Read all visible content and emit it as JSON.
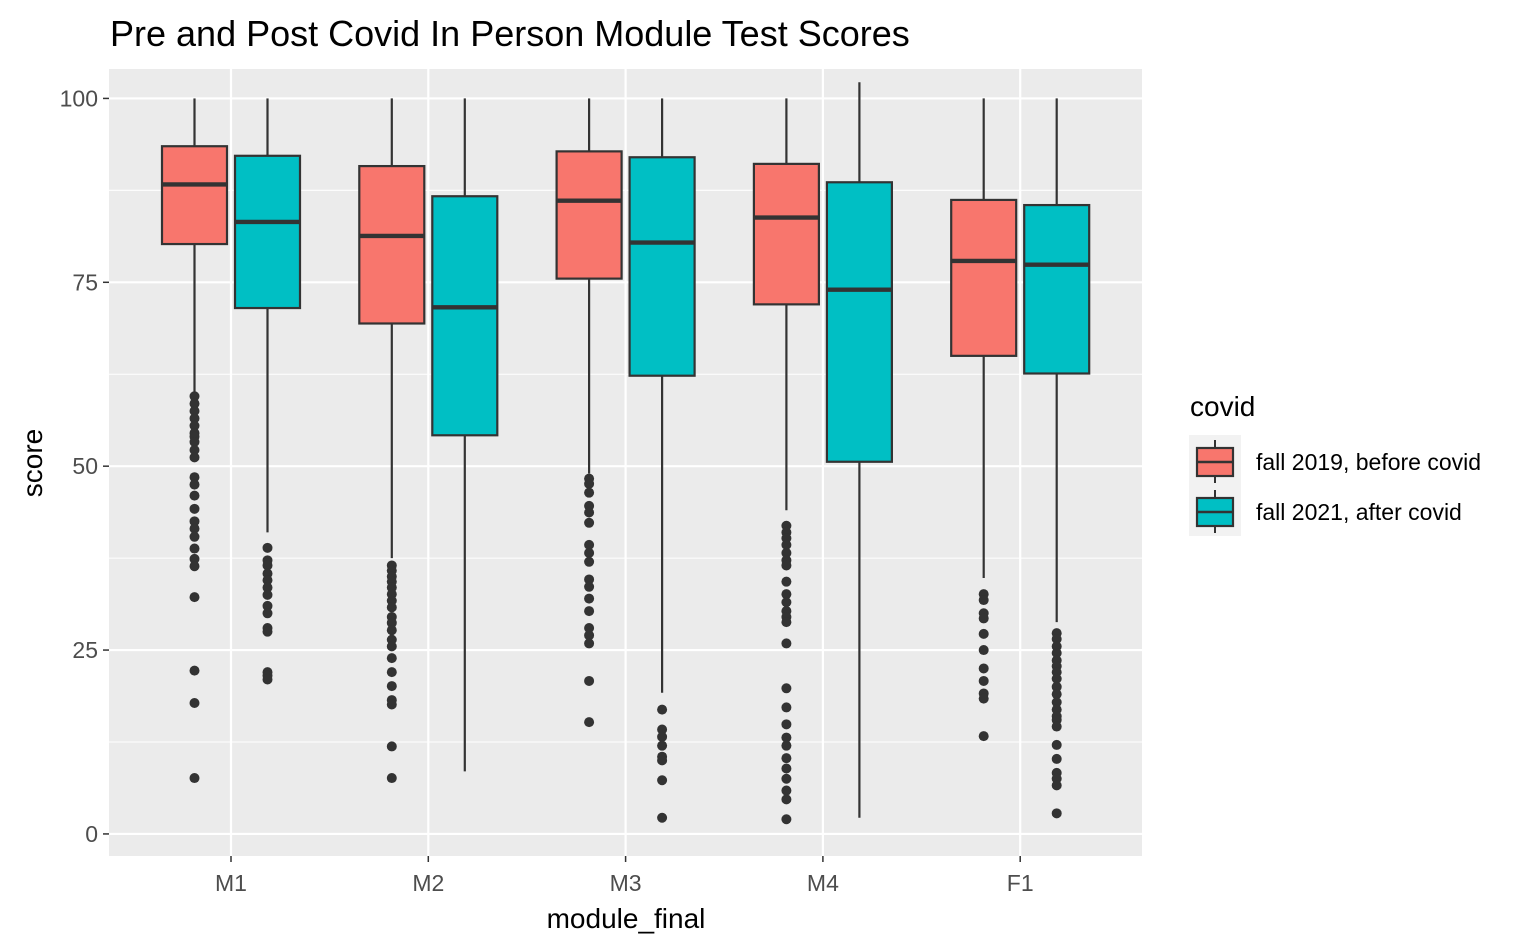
{
  "chart_data": {
    "type": "boxplot",
    "title": "Pre and Post Covid In Person Module Test Scores",
    "xlabel": "module_final",
    "ylabel": "score",
    "categories": [
      "M1",
      "M2",
      "M3",
      "M4",
      "F1"
    ],
    "ylim": [
      -3,
      104
    ],
    "yticks": [
      0,
      25,
      50,
      75,
      100
    ],
    "grid": true,
    "legend": {
      "title": "covid",
      "position": "right"
    },
    "series": [
      {
        "name": "fall 2019, before covid",
        "color": "#F8766D",
        "boxes": [
          {
            "category": "M1",
            "min": 60,
            "q1": 80.2,
            "median": 88.3,
            "q3": 93.5,
            "max": 100,
            "outliers": [
              59.5,
              58.5,
              57.5,
              56.5,
              55.5,
              54.5,
              54.0,
              53.3,
              52.2,
              51.2,
              48.5,
              47.5,
              46.0,
              44.2,
              42.5,
              41.5,
              40.4,
              38.8,
              37.4,
              36.4,
              32.2,
              22.2,
              17.8,
              7.6
            ]
          },
          {
            "category": "M2",
            "min": 37.5,
            "q1": 69.4,
            "median": 81.3,
            "q3": 90.8,
            "max": 100,
            "outliers": [
              36.5,
              35.8,
              35.0,
              34.3,
              33.5,
              32.6,
              31.7,
              30.8,
              29.5,
              28.7,
              27.7,
              26.4,
              25.5,
              23.9,
              22.0,
              20.1,
              18.2,
              17.6,
              11.9,
              7.6
            ]
          },
          {
            "category": "M3",
            "min": 49,
            "q1": 75.5,
            "median": 86.1,
            "q3": 92.8,
            "max": 100,
            "outliers": [
              48.3,
              47.6,
              46.4,
              44.6,
              43.7,
              42.3,
              39.3,
              38.2,
              37.0,
              34.6,
              33.6,
              32.0,
              30.3,
              28.0,
              27.0,
              25.9,
              20.8,
              15.2
            ]
          },
          {
            "category": "M4",
            "min": 44,
            "q1": 72.0,
            "median": 83.8,
            "q3": 91.1,
            "max": 100,
            "outliers": [
              41.9,
              41.0,
              40.2,
              39.3,
              38.2,
              37.2,
              36.5,
              34.3,
              32.6,
              31.5,
              30.3,
              29.5,
              28.8,
              25.9,
              19.8,
              17.2,
              14.9,
              13.1,
              12.0,
              10.3,
              8.9,
              7.5,
              5.9,
              4.7,
              2.0
            ]
          },
          {
            "category": "F1",
            "min": 34.8,
            "q1": 65.0,
            "median": 77.9,
            "q3": 86.2,
            "max": 100,
            "outliers": [
              32.6,
              31.8,
              30.0,
              29.3,
              27.2,
              25.0,
              22.5,
              20.8,
              19.1,
              18.4,
              13.3
            ]
          }
        ]
      },
      {
        "name": "fall 2021, after covid",
        "color": "#00BFC4",
        "boxes": [
          {
            "category": "M1",
            "min": 41,
            "q1": 71.5,
            "median": 83.2,
            "q3": 92.2,
            "max": 100,
            "outliers": [
              38.9,
              37.2,
              36.5,
              35.4,
              34.5,
              33.5,
              32.5,
              31.0,
              30.0,
              28.0,
              27.5,
              22.0,
              21.5,
              21.0
            ]
          },
          {
            "category": "M2",
            "min": 8.5,
            "q1": 54.2,
            "median": 71.6,
            "q3": 86.7,
            "max": 100,
            "outliers": []
          },
          {
            "category": "M3",
            "min": 19.2,
            "q1": 62.3,
            "median": 80.4,
            "q3": 92.0,
            "max": 100,
            "outliers": [
              16.9,
              14.2,
              13.2,
              12.0,
              10.5,
              10.0,
              7.3,
              2.2
            ]
          },
          {
            "category": "M4",
            "min": 2.2,
            "q1": 50.6,
            "median": 74.0,
            "q3": 88.6,
            "max": 102.2,
            "outliers": []
          },
          {
            "category": "F1",
            "min": 28.8,
            "q1": 62.6,
            "median": 77.4,
            "q3": 85.5,
            "max": 100,
            "outliers": [
              27.3,
              26.5,
              25.5,
              24.6,
              23.6,
              22.8,
              22.0,
              21.1,
              20.0,
              19.0,
              17.9,
              16.9,
              16.0,
              15.5,
              14.6,
              12.1,
              10.2,
              8.3,
              7.5,
              6.6,
              2.8
            ]
          }
        ]
      }
    ]
  }
}
